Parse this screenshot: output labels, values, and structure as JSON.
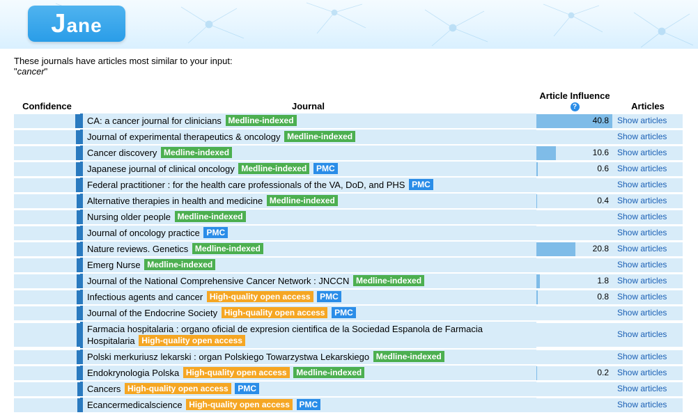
{
  "logo_text": "Jane",
  "intro_line": "These journals have articles most similar to your input:",
  "query": "cancer",
  "columns": {
    "confidence": "Confidence",
    "journal": "Journal",
    "article_influence": "Article Influence",
    "articles": "Articles"
  },
  "show_articles_label": "Show articles",
  "tag_labels": {
    "medline": "Medline-indexed",
    "pmc": "PMC",
    "openaccess": "High-quality open access"
  },
  "colors": {
    "row_bg": "#d8ecf9",
    "conf_bar": "#2a7abf",
    "ai_bar": "#7fbce8",
    "tag_medline": "#4caf50",
    "tag_pmc": "#2a8de8",
    "tag_openaccess": "#f5a623",
    "link": "#1a5fb4",
    "banner_gradient_top": "#f4fbff",
    "banner_gradient_bottom": "#d9f0ff",
    "logo_gradient_top": "#4fb3ef",
    "logo_gradient_bottom": "#2a9de8"
  },
  "ai_bar_max": 41,
  "rows": [
    {
      "conf_pct": 7,
      "title": "CA: a cancer journal for clinicians",
      "tags": [
        "medline"
      ],
      "ai": 40.8
    },
    {
      "conf_pct": 6,
      "title": "Journal of experimental therapeutics & oncology",
      "tags": [
        "medline"
      ],
      "ai": null
    },
    {
      "conf_pct": 6,
      "title": "Cancer discovery",
      "tags": [
        "medline"
      ],
      "ai": 10.6
    },
    {
      "conf_pct": 6,
      "title": "Japanese journal of clinical oncology",
      "tags": [
        "medline",
        "pmc"
      ],
      "ai": 0.6
    },
    {
      "conf_pct": 6,
      "title": "Federal practitioner : for the health care professionals of the VA, DoD, and PHS",
      "tags": [
        "pmc"
      ],
      "ai": null
    },
    {
      "conf_pct": 5,
      "title": "Alternative therapies in health and medicine",
      "tags": [
        "medline"
      ],
      "ai": 0.4
    },
    {
      "conf_pct": 5,
      "title": "Nursing older people",
      "tags": [
        "medline"
      ],
      "ai": null
    },
    {
      "conf_pct": 5,
      "title": "Journal of oncology practice",
      "tags": [
        "pmc"
      ],
      "ai": null
    },
    {
      "conf_pct": 5,
      "title": "Nature reviews. Genetics",
      "tags": [
        "medline"
      ],
      "ai": 20.8
    },
    {
      "conf_pct": 5,
      "title": "Emerg Nurse",
      "tags": [
        "medline"
      ],
      "ai": null
    },
    {
      "conf_pct": 5,
      "title": "Journal of the National Comprehensive Cancer Network : JNCCN",
      "tags": [
        "medline"
      ],
      "ai": 1.8
    },
    {
      "conf_pct": 5,
      "title": "Infectious agents and cancer",
      "tags": [
        "openaccess",
        "pmc"
      ],
      "ai": 0.8
    },
    {
      "conf_pct": 5,
      "title": "Journal of the Endocrine Society",
      "tags": [
        "openaccess",
        "pmc"
      ],
      "ai": null
    },
    {
      "conf_pct": 5,
      "title": "Farmacia hospitalaria : organo oficial de expresion cientifica de la Sociedad Espanola de Farmacia Hospitalaria",
      "tags": [
        "openaccess"
      ],
      "ai": null,
      "tall": true
    },
    {
      "conf_pct": 5,
      "title": "Polski merkuriusz lekarski : organ Polskiego Towarzystwa Lekarskiego",
      "tags": [
        "medline"
      ],
      "ai": null
    },
    {
      "conf_pct": 5,
      "title": "Endokrynologia Polska",
      "tags": [
        "openaccess",
        "medline"
      ],
      "ai": 0.2
    },
    {
      "conf_pct": 4,
      "title": "Cancers",
      "tags": [
        "openaccess",
        "pmc"
      ],
      "ai": null
    },
    {
      "conf_pct": 4,
      "title": "Ecancermedicalscience",
      "tags": [
        "openaccess",
        "pmc"
      ],
      "ai": null
    }
  ]
}
